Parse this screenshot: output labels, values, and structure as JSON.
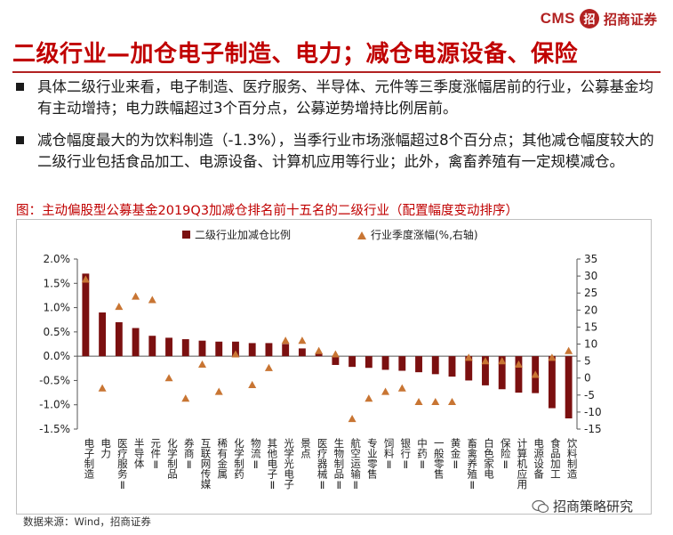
{
  "header": {
    "logo_text": "CMS",
    "logo_mark": "招",
    "logo_cn": "招商证券",
    "title": "二级行业—加仓电子制造、电力；减仓电源设备、保险"
  },
  "bullets": [
    "具体二级行业来看，电子制造、医疗服务、半导体、元件等三季度涨幅居前的行业，公募基金均有主动增持；电力跌幅超过3个百分点，公募逆势增持比例居前。",
    "减仓幅度最大的为饮料制造（-1.3%），当季行业市场涨幅超过8个百分点；其他减仓幅度较大的二级行业包括食品加工、电源设备、计算机应用等行业；此外，禽畜养殖有一定规模减仓。"
  ],
  "figure": {
    "caption": "图：主动偏股型公募基金2019Q3加减仓排名前十五名的二级行业（配置幅度变动排序）"
  },
  "chart_data": {
    "type": "bar",
    "categories": [
      "电子制造",
      "电力",
      "医疗服务Ⅱ",
      "半导体",
      "元件Ⅱ",
      "化学制品",
      "券商Ⅱ",
      "互联网传媒",
      "稀有金属",
      "化学制药",
      "物流Ⅱ",
      "其他电子Ⅱ",
      "光学光电子",
      "景点",
      "医疗器械Ⅱ",
      "生物制品Ⅱ",
      "航空运输Ⅱ",
      "专业零售",
      "饲料Ⅱ",
      "银行Ⅱ",
      "中药Ⅱ",
      "一般零售",
      "黄金Ⅱ",
      "畜禽养殖Ⅱ",
      "白色家电",
      "保险Ⅱ",
      "计算机应用",
      "电源设备",
      "食品加工",
      "饮料制造"
    ],
    "series": [
      {
        "name": "二级行业加减仓比例",
        "axis": "left",
        "unit": "%",
        "values": [
          1.7,
          0.9,
          0.7,
          0.58,
          0.42,
          0.38,
          0.35,
          0.32,
          0.3,
          0.3,
          0.27,
          0.27,
          0.25,
          0.16,
          0.05,
          -0.18,
          -0.22,
          -0.24,
          -0.28,
          -0.3,
          -0.33,
          -0.37,
          -0.42,
          -0.5,
          -0.6,
          -0.68,
          -0.75,
          -0.76,
          -1.07,
          -1.28
        ],
        "color": "#7b1010"
      },
      {
        "name": "行业季度涨幅(%,右轴)",
        "axis": "right",
        "unit": "%",
        "values": [
          29,
          -3,
          21,
          24,
          23,
          0,
          -6,
          4,
          -4,
          7,
          -2,
          3,
          11,
          11,
          8,
          7,
          -12,
          -6,
          -4,
          -3,
          -7,
          -7,
          -7,
          6,
          5,
          5,
          4,
          1,
          6,
          8
        ],
        "color": "#c87533"
      }
    ],
    "left_axis": {
      "min": -1.5,
      "max": 2.0,
      "step": 0.5,
      "ticks": [
        "2.0%",
        "1.5%",
        "1.0%",
        "0.5%",
        "0.0%",
        "-0.5%",
        "-1.0%",
        "-1.5%"
      ]
    },
    "right_axis": {
      "min": -15,
      "max": 35,
      "step": 5,
      "ticks": [
        "35",
        "30",
        "25",
        "20",
        "15",
        "10",
        "5",
        "0",
        "-5",
        "-10",
        "-15"
      ]
    },
    "legend_position": "top"
  },
  "source": "数据来源：Wind，招商证券",
  "watermark": "招商策略研究"
}
